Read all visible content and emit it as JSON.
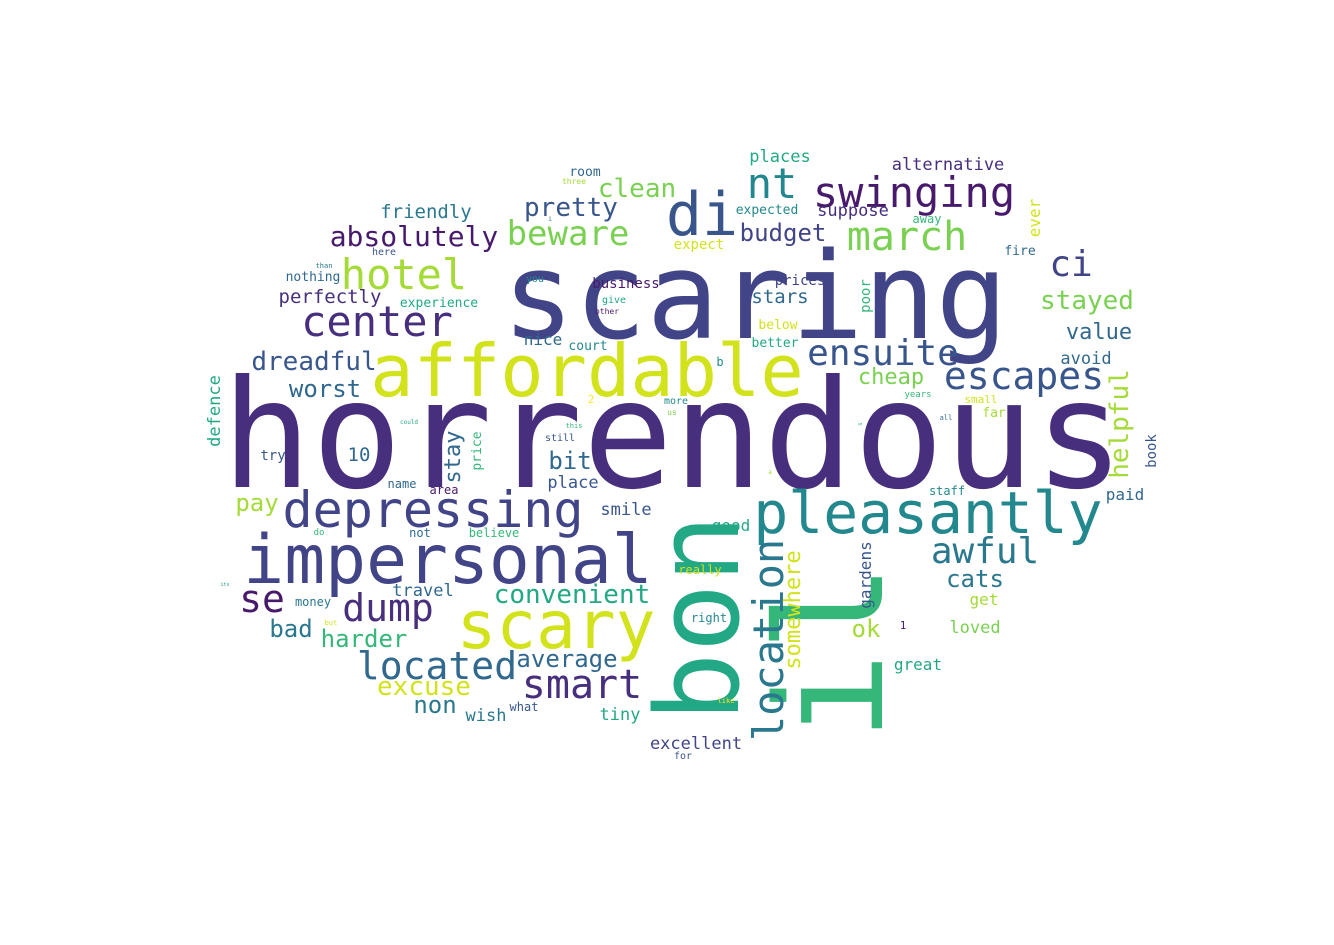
{
  "palette": {
    "dark_purple": "#481a6c",
    "purple": "#472f7d",
    "indigo": "#414487",
    "blue": "#39568c",
    "steel": "#31688e",
    "teal_blue": "#2a788e",
    "teal": "#23888e",
    "sea": "#1f988b",
    "green_teal": "#22a884",
    "green": "#35b779",
    "light_green": "#54c568",
    "lime": "#7ad151",
    "yellow_green": "#a5db36",
    "yellow": "#d2e21b",
    "bright_yellow": "#fde725"
  },
  "words": [
    {
      "text": "horrendous",
      "color": "#472f7d"
    },
    {
      "text": "scaring",
      "color": "#414487"
    },
    {
      "text": "il",
      "color": "#35b779"
    },
    {
      "text": "bon",
      "color": "#22a884"
    },
    {
      "text": "impersonal",
      "color": "#414487"
    },
    {
      "text": "affordable",
      "color": "#d2e21b"
    },
    {
      "text": "pleasantly",
      "color": "#23888e"
    },
    {
      "text": "scary",
      "color": "#d2e21b"
    },
    {
      "text": "depressing",
      "color": "#414487"
    },
    {
      "text": "di",
      "color": "#39568c"
    },
    {
      "text": "swinging",
      "color": "#481a6c"
    },
    {
      "text": "location",
      "color": "#2a788e"
    },
    {
      "text": "escapes",
      "color": "#39568c"
    },
    {
      "text": "nt",
      "color": "#23888e"
    },
    {
      "text": "ensuite",
      "color": "#39568c"
    },
    {
      "text": "march",
      "color": "#7ad151"
    },
    {
      "text": "center",
      "color": "#472f7d"
    },
    {
      "text": "hotel",
      "color": "#a5db36"
    },
    {
      "text": "beware",
      "color": "#7ad151"
    },
    {
      "text": "smart",
      "color": "#472f7d"
    },
    {
      "text": "located",
      "color": "#31688e"
    },
    {
      "text": "dump",
      "color": "#472f7d"
    },
    {
      "text": "ci",
      "color": "#414487"
    },
    {
      "text": "awful",
      "color": "#2a788e"
    },
    {
      "text": "se",
      "color": "#481a6c"
    },
    {
      "text": "helpful",
      "color": "#a5db36"
    },
    {
      "text": "absolutely",
      "color": "#481a6c"
    },
    {
      "text": "dreadful",
      "color": "#39568c"
    },
    {
      "text": "convenient",
      "color": "#22a884"
    },
    {
      "text": "stayed",
      "color": "#7ad151"
    },
    {
      "text": "clean",
      "color": "#7ad151"
    },
    {
      "text": "pretty",
      "color": "#39568c"
    },
    {
      "text": "somewhere",
      "color": "#d2e21b"
    },
    {
      "text": "excuse",
      "color": "#d2e21b"
    },
    {
      "text": "average",
      "color": "#31688e"
    },
    {
      "text": "harder",
      "color": "#35b779"
    },
    {
      "text": "budget",
      "color": "#414487"
    },
    {
      "text": "cats",
      "color": "#2a788e"
    },
    {
      "text": "worst",
      "color": "#31688e"
    },
    {
      "text": "cheap",
      "color": "#7ad151"
    },
    {
      "text": "value",
      "color": "#31688e"
    },
    {
      "text": "stay",
      "color": "#31688e"
    },
    {
      "text": "bit",
      "color": "#31688e"
    },
    {
      "text": "non",
      "color": "#2a788e"
    },
    {
      "text": "bad",
      "color": "#2a788e"
    },
    {
      "text": "pay",
      "color": "#a5db36"
    },
    {
      "text": "ok",
      "color": "#a5db36"
    },
    {
      "text": "friendly",
      "color": "#2a788e"
    },
    {
      "text": "perfectly",
      "color": "#472f7d"
    },
    {
      "text": "places",
      "color": "#22a884"
    },
    {
      "text": "alternative",
      "color": "#472f7d"
    },
    {
      "text": "stars",
      "color": "#31688e"
    },
    {
      "text": "gardens",
      "color": "#39568c"
    },
    {
      "text": "suppose",
      "color": "#472f7d"
    },
    {
      "text": "wish",
      "color": "#2a788e"
    },
    {
      "text": "tiny",
      "color": "#22a884"
    },
    {
      "text": "excellent",
      "color": "#414487"
    },
    {
      "text": "smile",
      "color": "#39568c"
    },
    {
      "text": "place",
      "color": "#39568c"
    },
    {
      "text": "travel",
      "color": "#31688e"
    },
    {
      "text": "defence",
      "color": "#22a884"
    },
    {
      "text": "avoid",
      "color": "#31688e"
    },
    {
      "text": "paid",
      "color": "#31688e"
    },
    {
      "text": "loved",
      "color": "#7ad151"
    },
    {
      "text": "great",
      "color": "#22a884"
    },
    {
      "text": "good",
      "color": "#22a884"
    },
    {
      "text": "ever",
      "color": "#d2e21b"
    },
    {
      "text": "poor",
      "color": "#35b779"
    },
    {
      "text": "10",
      "color": "#31688e"
    },
    {
      "text": "nice",
      "color": "#31688e"
    },
    {
      "text": "expect",
      "color": "#d2e21b"
    },
    {
      "text": "get",
      "color": "#a5db36"
    },
    {
      "text": "book",
      "color": "#39568c"
    },
    {
      "text": "price",
      "color": "#35b779"
    },
    {
      "text": "try",
      "color": "#39568c"
    },
    {
      "text": "business",
      "color": "#481a6c"
    },
    {
      "text": "prices",
      "color": "#414487"
    },
    {
      "text": "experience",
      "color": "#22a884"
    },
    {
      "text": "nothing",
      "color": "#31688e"
    },
    {
      "text": "expected",
      "color": "#23888e"
    },
    {
      "text": "below",
      "color": "#d2e21b"
    },
    {
      "text": "better",
      "color": "#22a884"
    },
    {
      "text": "court",
      "color": "#23888e"
    },
    {
      "text": "fire",
      "color": "#31688e"
    },
    {
      "text": "away",
      "color": "#35b779"
    },
    {
      "text": "room",
      "color": "#31688e"
    },
    {
      "text": "really",
      "color": "#d2e21b"
    },
    {
      "text": "right",
      "color": "#23888e"
    },
    {
      "text": "staff",
      "color": "#23888e"
    },
    {
      "text": "believe",
      "color": "#35b779"
    },
    {
      "text": "money",
      "color": "#2a788e"
    },
    {
      "text": "what",
      "color": "#39568c"
    },
    {
      "text": "name",
      "color": "#31688e"
    },
    {
      "text": "area",
      "color": "#481a6c"
    },
    {
      "text": "not",
      "color": "#31688e"
    },
    {
      "text": "far",
      "color": "#a5db36"
    },
    {
      "text": "small",
      "color": "#d2e21b"
    },
    {
      "text": "still",
      "color": "#39568c"
    },
    {
      "text": "more",
      "color": "#23888e"
    },
    {
      "text": "give",
      "color": "#22a884"
    },
    {
      "text": "for",
      "color": "#39568c"
    },
    {
      "text": "b",
      "color": "#23888e"
    },
    {
      "text": "1",
      "color": "#481a6c"
    },
    {
      "text": "2",
      "color": "#fde725"
    },
    {
      "text": "you",
      "color": "#23888e"
    },
    {
      "text": "here",
      "color": "#39568c"
    },
    {
      "text": "three",
      "color": "#a5db36"
    },
    {
      "text": "than",
      "color": "#2a788e"
    },
    {
      "text": "years",
      "color": "#35b779"
    },
    {
      "text": "us",
      "color": "#7ad151"
    },
    {
      "text": "do",
      "color": "#35b779"
    },
    {
      "text": "all",
      "color": "#31688e"
    },
    {
      "text": "other",
      "color": "#481a6c"
    },
    {
      "text": "but",
      "color": "#d2e21b"
    },
    {
      "text": "like",
      "color": "#fde725"
    },
    {
      "text": "this",
      "color": "#35b779"
    },
    {
      "text": "could",
      "color": "#22a884"
    },
    {
      "text": "its",
      "color": "#1f988b"
    },
    {
      "text": "i",
      "color": "#31688e"
    },
    {
      "text": "s",
      "color": "#35b779"
    },
    {
      "text": "a",
      "color": "#a5db36"
    }
  ]
}
